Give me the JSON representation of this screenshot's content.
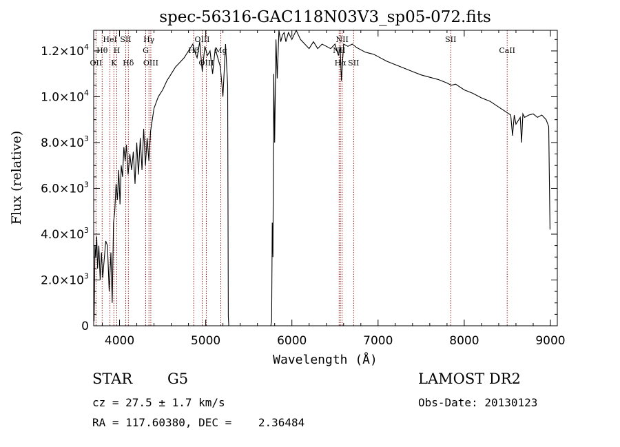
{
  "chart_data": {
    "type": "line",
    "title": "spec-56316-GAC118N03V3_sp05-072.fits",
    "xlabel": "Wavelength (Å)",
    "ylabel": "Flux (relative)",
    "xlim": [
      3700,
      9080
    ],
    "ylim": [
      0,
      12900
    ],
    "x_ticks": [
      4000,
      5000,
      6000,
      7000,
      8000,
      9000
    ],
    "y_ticks": [
      {
        "value": 0,
        "mant": "0",
        "exp": ""
      },
      {
        "value": 2000,
        "mant": "2.0×10",
        "exp": "3"
      },
      {
        "value": 4000,
        "mant": "4.0×10",
        "exp": "3"
      },
      {
        "value": 6000,
        "mant": "6.0×10",
        "exp": "3"
      },
      {
        "value": 8000,
        "mant": "8.0×10",
        "exp": "3"
      },
      {
        "value": 10000,
        "mant": "1.0×10",
        "exp": "4"
      },
      {
        "value": 12000,
        "mant": "1.2×10",
        "exp": "4"
      }
    ],
    "grid": false,
    "line_color": "#000000",
    "marker_color": "#8b0000",
    "series": [
      {
        "x": [
          3705,
          3715,
          3725,
          3735,
          3745,
          3760,
          3775,
          3790,
          3805,
          3820,
          3840,
          3860,
          3880,
          3900,
          3915,
          3930,
          3945,
          3960,
          3975,
          3990,
          4005,
          4020,
          4035,
          4050,
          4065,
          4080,
          4100,
          4120,
          4140,
          4160,
          4180,
          4200,
          4220,
          4240,
          4260,
          4280,
          4300,
          4320,
          4340,
          4360,
          4380,
          4400,
          4450,
          4500,
          4550,
          4600,
          4650,
          4700,
          4750,
          4800,
          4850,
          4870,
          4900,
          4930,
          4960,
          4990,
          5020,
          5050,
          5080,
          5110,
          5140,
          5170,
          5200,
          5230,
          5255,
          5262,
          5268,
          5755,
          5765,
          5772,
          5780,
          5790,
          5800,
          5815,
          5830,
          5850,
          5870,
          5890,
          5910,
          5930,
          5960,
          6000,
          6050,
          6100,
          6150,
          6200,
          6250,
          6300,
          6350,
          6400,
          6450,
          6500,
          6540,
          6560,
          6575,
          6600,
          6650,
          6700,
          6750,
          6800,
          6850,
          6900,
          6950,
          7000,
          7100,
          7200,
          7300,
          7400,
          7500,
          7600,
          7700,
          7800,
          7850,
          7900,
          8000,
          8100,
          8200,
          8300,
          8400,
          8500,
          8540,
          8560,
          8580,
          8600,
          8650,
          8665,
          8680,
          8700,
          8750,
          8800,
          8850,
          8900,
          8950,
          8980,
          8995
        ],
        "y": [
          200,
          3500,
          3000,
          3900,
          2500,
          3500,
          2000,
          3200,
          2100,
          2800,
          3700,
          3500,
          1500,
          3200,
          1000,
          4500,
          5000,
          6200,
          5500,
          6800,
          5300,
          7000,
          6500,
          7800,
          7200,
          7900,
          6600,
          7500,
          6800,
          7600,
          6200,
          8000,
          6600,
          8200,
          6800,
          8600,
          7000,
          8200,
          7200,
          8500,
          9000,
          9500,
          10000,
          10300,
          10700,
          11000,
          11300,
          11500,
          11700,
          12000,
          12300,
          12000,
          11700,
          12400,
          11100,
          12200,
          11800,
          12000,
          11000,
          12100,
          11700,
          11300,
          10000,
          12300,
          10500,
          400,
          0,
          0,
          200,
          4500,
          3000,
          11000,
          8000,
          12500,
          10800,
          12900,
          12400,
          12700,
          12800,
          12400,
          12800,
          12500,
          12900,
          12500,
          12300,
          12100,
          12400,
          12100,
          12300,
          12200,
          12100,
          12300,
          11800,
          12200,
          10700,
          12300,
          12200,
          12300,
          12150,
          12050,
          11950,
          11900,
          11850,
          11750,
          11550,
          11400,
          11250,
          11100,
          10950,
          10850,
          10750,
          10600,
          10500,
          10550,
          10300,
          10150,
          9950,
          9800,
          9550,
          9300,
          9200,
          8300,
          9200,
          8800,
          9100,
          8000,
          9250,
          9100,
          9200,
          9250,
          9100,
          9200,
          9000,
          8700,
          4200
        ]
      }
    ],
    "line_markers": [
      {
        "x": 3727,
        "label": "OII",
        "row": 3
      },
      {
        "x": 3798,
        "label": "Hθ",
        "row": 2
      },
      {
        "x": 3889,
        "label": "HeI",
        "row": 1
      },
      {
        "x": 3934,
        "label": "K",
        "row": 3
      },
      {
        "x": 3968,
        "label": "H",
        "row": 2
      },
      {
        "x": 4072,
        "label": "SII",
        "row": 1
      },
      {
        "x": 4102,
        "label": "Hδ",
        "row": 3
      },
      {
        "x": 4304,
        "label": "G",
        "row": 2
      },
      {
        "x": 4341,
        "label": "Hγ",
        "row": 1
      },
      {
        "x": 4363,
        "label": "OIII",
        "row": 3
      },
      {
        "x": 4861,
        "label": "Hβ",
        "row": 2
      },
      {
        "x": 4959,
        "label": "OIII",
        "row": 1
      },
      {
        "x": 5007,
        "label": "OIII",
        "row": 3
      },
      {
        "x": 5175,
        "label": "Mg",
        "row": 2
      },
      {
        "x": 6548,
        "label": "NII",
        "row": 2
      },
      {
        "x": 6563,
        "label": "Hα",
        "row": 3
      },
      {
        "x": 6583,
        "label": "NII",
        "row": 1
      },
      {
        "x": 6716,
        "label": "SII",
        "row": 3
      },
      {
        "x": 7843,
        "label": "SII",
        "row": 1
      },
      {
        "x": 8498,
        "label": "CaII",
        "row": 2
      }
    ]
  },
  "info": {
    "object_class": "STAR",
    "subclass": "G5",
    "survey": "LAMOST DR2",
    "cz": "cz = 27.5 ± 1.7 km/s",
    "obs_date": "Obs-Date: 20130123",
    "radec": "RA = 117.60380, DEC =    2.36484"
  }
}
